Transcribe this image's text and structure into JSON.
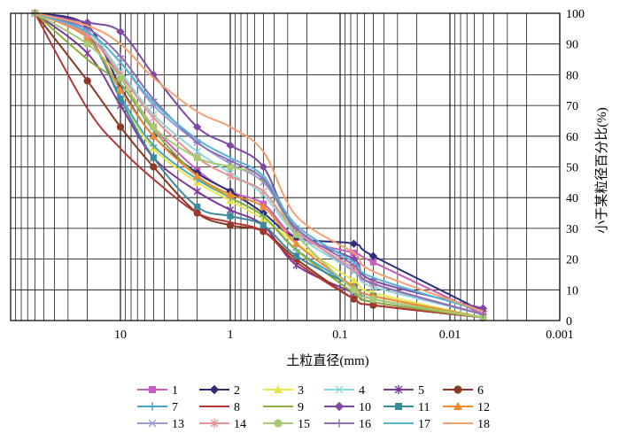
{
  "chart_data": {
    "type": "line",
    "xlabel": "土粒直径(mm)",
    "ylabel": "小于某粒径百分比(%)",
    "x_scale": "log",
    "x_reversed": true,
    "xlim": [
      100,
      0.001
    ],
    "ylim": [
      0,
      100
    ],
    "x_ticks": [
      10,
      1,
      0.1,
      0.01,
      0.001
    ],
    "x_tick_labels": [
      "10",
      "1",
      "0.1",
      "0.01",
      "0.001"
    ],
    "y_ticks": [
      0,
      10,
      20,
      30,
      40,
      50,
      60,
      70,
      80,
      90,
      100
    ],
    "y_tick_labels": [
      "0",
      "10",
      "20",
      "30",
      "40",
      "50",
      "60",
      "70",
      "80",
      "90",
      "100"
    ],
    "y_axis_side": "right",
    "grid": true,
    "legend": {
      "placement": "bottom",
      "columns": 6
    },
    "x": [
      60,
      20,
      10,
      5,
      2,
      1,
      0.5,
      0.25,
      0.075,
      0.05,
      0.005
    ],
    "series": [
      {
        "name": "1",
        "color": "#c55fc0",
        "marker": "square",
        "values": [
          100,
          93,
          79,
          63,
          49,
          42,
          38,
          27,
          22,
          19,
          2
        ]
      },
      {
        "name": "2",
        "color": "#2e2d7a",
        "marker": "diamond",
        "values": [
          100,
          96,
          76,
          60,
          48,
          42,
          35,
          27,
          25,
          21,
          3
        ]
      },
      {
        "name": "3",
        "color": "#e8e64a",
        "marker": "triangle",
        "values": [
          100,
          93,
          72,
          56,
          45,
          39,
          33,
          25,
          13,
          9,
          1
        ]
      },
      {
        "name": "4",
        "color": "#8dd6dd",
        "marker": "x",
        "values": [
          100,
          94,
          81,
          67,
          55,
          48,
          41,
          28,
          16,
          11,
          2
        ]
      },
      {
        "name": "5",
        "color": "#7b3a94",
        "marker": "star",
        "values": [
          100,
          87,
          70,
          53,
          42,
          36,
          31,
          18,
          9,
          6,
          1
        ]
      },
      {
        "name": "6",
        "color": "#8b3a26",
        "marker": "circle",
        "values": [
          100,
          78,
          63,
          50,
          35,
          31,
          29,
          20,
          7,
          5,
          1
        ]
      },
      {
        "name": "7",
        "color": "#4aa3c8",
        "marker": "plus",
        "values": [
          100,
          92,
          73,
          57,
          46,
          40,
          34,
          23,
          11,
          7,
          1
        ]
      },
      {
        "name": "8",
        "color": "#b13636",
        "marker": "none",
        "values": [
          100,
          69,
          56,
          46,
          35,
          32,
          29,
          19,
          7,
          5,
          1
        ]
      },
      {
        "name": "9",
        "color": "#8bae3d",
        "marker": "none",
        "values": [
          100,
          85,
          77,
          62,
          47,
          40,
          34,
          23,
          9,
          6,
          1
        ]
      },
      {
        "name": "10",
        "color": "#7e4aa6",
        "marker": "diamond",
        "values": [
          100,
          97,
          94,
          80,
          63,
          57,
          50,
          29,
          20,
          13,
          4
        ]
      },
      {
        "name": "11",
        "color": "#3c8a9e",
        "marker": "square",
        "values": [
          100,
          93,
          72,
          53,
          37,
          34,
          31,
          21,
          11,
          8,
          1
        ]
      },
      {
        "name": "12",
        "color": "#f08c34",
        "marker": "triangle",
        "values": [
          100,
          92,
          75,
          60,
          47,
          41,
          37,
          25,
          11,
          8,
          1
        ]
      },
      {
        "name": "13",
        "color": "#9c9ed8",
        "marker": "x",
        "values": [
          100,
          94,
          84,
          70,
          58,
          51,
          45,
          30,
          16,
          12,
          2
        ]
      },
      {
        "name": "14",
        "color": "#e89393",
        "marker": "star",
        "values": [
          100,
          93,
          80,
          66,
          53,
          47,
          42,
          29,
          17,
          12,
          2
        ]
      },
      {
        "name": "15",
        "color": "#a8c872",
        "marker": "circle",
        "values": [
          100,
          90,
          79,
          63,
          53,
          50,
          46,
          28,
          10,
          7,
          1
        ]
      },
      {
        "name": "16",
        "color": "#8a6fb8",
        "marker": "plus",
        "values": [
          100,
          95,
          86,
          72,
          58,
          52,
          46,
          30,
          18,
          12,
          2
        ]
      },
      {
        "name": "17",
        "color": "#57b4d4",
        "marker": "none",
        "values": [
          100,
          94,
          84,
          71,
          59,
          53,
          47,
          31,
          19,
          14,
          3
        ]
      },
      {
        "name": "18",
        "color": "#f5a070",
        "marker": "none",
        "values": [
          100,
          96,
          90,
          79,
          68,
          63,
          55,
          34,
          22,
          16,
          3
        ]
      }
    ]
  }
}
